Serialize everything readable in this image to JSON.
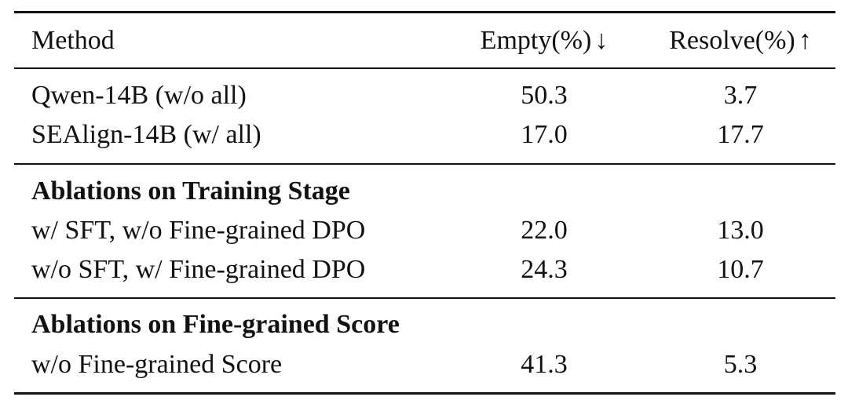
{
  "table": {
    "headers": {
      "method": "Method",
      "empty": "Empty(%)",
      "empty_arrow": "↓",
      "resolve": "Resolve(%)",
      "resolve_arrow": "↑"
    },
    "groups": [
      {
        "title": "",
        "rows": [
          {
            "method": "Qwen-14B (w/o all)",
            "empty": "50.3",
            "resolve": "3.7"
          },
          {
            "method": "SEAlign-14B (w/ all)",
            "empty": "17.0",
            "resolve": "17.7"
          }
        ]
      },
      {
        "title": "Ablations on Training Stage",
        "rows": [
          {
            "method": "w/ SFT, w/o Fine-grained DPO",
            "empty": "22.0",
            "resolve": "13.0"
          },
          {
            "method": "w/o SFT, w/ Fine-grained DPO",
            "empty": "24.3",
            "resolve": "10.7"
          }
        ]
      },
      {
        "title": "Ablations on Fine-grained Score",
        "rows": [
          {
            "method": "w/o Fine-grained Score",
            "empty": "41.3",
            "resolve": "5.3"
          }
        ]
      }
    ]
  }
}
